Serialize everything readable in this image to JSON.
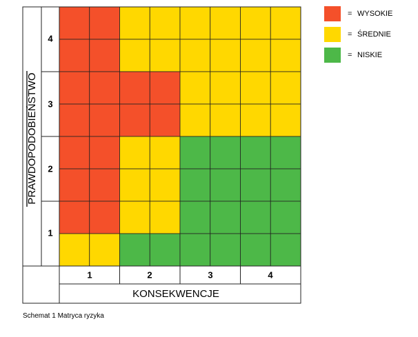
{
  "chart_data": {
    "type": "heatmap",
    "title": "",
    "xlabel": "KONSEKWENCJE",
    "ylabel": "PRAWDOPODOBIEŃSTWO",
    "x_categories": [
      "1",
      "2",
      "3",
      "4"
    ],
    "y_categories": [
      "1",
      "2",
      "3",
      "4"
    ],
    "subdivisions": 2,
    "levels": [
      {
        "key": "high",
        "label": "WYSOKIE",
        "color": "#f4502a"
      },
      {
        "key": "medium",
        "label": "ŚREDNIE",
        "color": "#ffd800"
      },
      {
        "key": "low",
        "label": "NISKIE",
        "color": "#4db848"
      }
    ],
    "cells": [
      [
        "high",
        "high",
        "medium",
        "medium",
        "medium",
        "medium",
        "medium",
        "medium"
      ],
      [
        "high",
        "high",
        "medium",
        "medium",
        "medium",
        "medium",
        "medium",
        "medium"
      ],
      [
        "high",
        "high",
        "high",
        "high",
        "medium",
        "medium",
        "medium",
        "medium"
      ],
      [
        "high",
        "high",
        "high",
        "high",
        "medium",
        "medium",
        "medium",
        "medium"
      ],
      [
        "high",
        "high",
        "medium",
        "medium",
        "low",
        "low",
        "low",
        "low"
      ],
      [
        "high",
        "high",
        "medium",
        "medium",
        "low",
        "low",
        "low",
        "low"
      ],
      [
        "high",
        "high",
        "medium",
        "medium",
        "low",
        "low",
        "low",
        "low"
      ],
      [
        "medium",
        "medium",
        "low",
        "low",
        "low",
        "low",
        "low",
        "low"
      ]
    ]
  },
  "legend_separator": "=",
  "caption": "Schemat 1 Matryca ryzyka"
}
